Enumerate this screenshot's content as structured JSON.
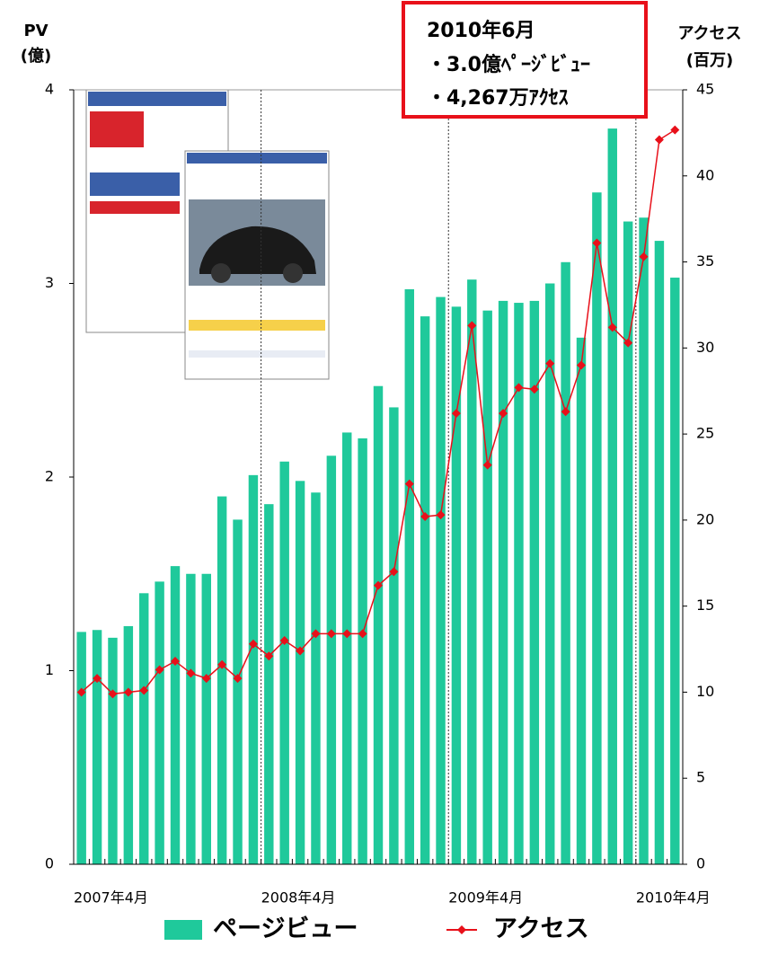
{
  "chart_data": {
    "type": "bar",
    "ylabel": [
      "PV",
      "(億)"
    ],
    "y2label": [
      "アクセス",
      "(百万)"
    ],
    "annotation": [
      "2010年6月",
      "・3.0億ﾍﾟｰｼﾞﾋﾞｭｰ",
      "・4,267万ｱｸｾｽ"
    ],
    "categories": [
      "2007年4月",
      null,
      null,
      null,
      null,
      null,
      null,
      null,
      null,
      null,
      null,
      null,
      "2008年4月",
      null,
      null,
      null,
      null,
      null,
      null,
      null,
      null,
      null,
      null,
      null,
      "2009年4月",
      null,
      null,
      null,
      null,
      null,
      null,
      null,
      null,
      null,
      null,
      null,
      "2010年4月",
      null,
      null
    ],
    "series": [
      {
        "name": "ページビュー",
        "type": "bar",
        "color": "#1fc99b",
        "values": [
          1.2,
          1.21,
          1.17,
          1.23,
          1.4,
          1.46,
          1.54,
          1.5,
          1.5,
          1.9,
          1.78,
          2.01,
          1.86,
          2.08,
          1.98,
          1.92,
          2.11,
          2.23,
          2.2,
          2.47,
          2.36,
          2.97,
          2.83,
          2.93,
          2.88,
          3.02,
          2.86,
          2.91,
          2.9,
          2.91,
          3.0,
          3.11,
          2.72,
          3.47,
          3.8,
          3.32,
          3.34,
          3.22,
          3.03
        ]
      },
      {
        "name": "アクセス",
        "type": "line",
        "axis": "y2",
        "color": "#e8101a",
        "values": [
          10.0,
          10.8,
          9.9,
          10.0,
          10.1,
          11.3,
          11.8,
          11.1,
          10.8,
          11.6,
          10.8,
          12.8,
          12.1,
          13.0,
          12.4,
          13.4,
          13.4,
          13.4,
          13.4,
          16.2,
          17.0,
          22.1,
          20.2,
          20.3,
          26.2,
          31.3,
          23.2,
          26.2,
          27.7,
          27.6,
          29.1,
          26.3,
          29.0,
          36.1,
          31.2,
          30.3,
          35.3,
          42.1,
          42.67
        ]
      }
    ],
    "ylim": [
      0,
      4
    ],
    "yticks": [
      0,
      1,
      2,
      3,
      4
    ],
    "y2lim": [
      0,
      45
    ],
    "y2ticks": [
      0,
      5,
      10,
      15,
      20,
      25,
      30,
      35,
      40,
      45
    ]
  }
}
